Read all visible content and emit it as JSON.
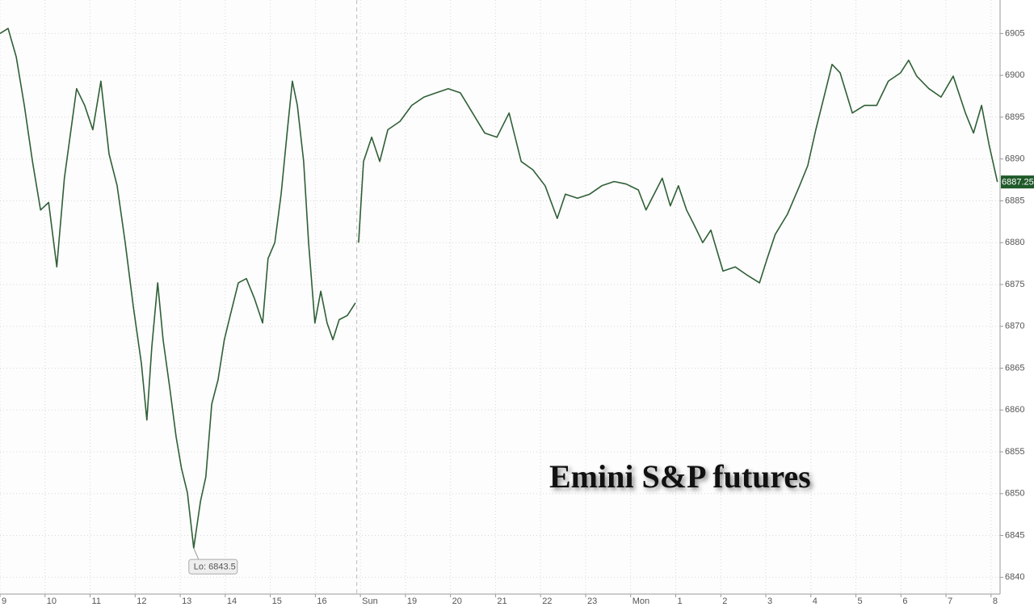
{
  "chart_data": {
    "type": "line",
    "title": "Emini S&P futures",
    "x": [
      0,
      0.18,
      0.36,
      0.54,
      0.72,
      0.9,
      1.08,
      1.26,
      1.43,
      1.7,
      1.88,
      2.06,
      2.24,
      2.42,
      2.6,
      2.78,
      2.96,
      3.14,
      3.26,
      3.37,
      3.5,
      3.62,
      3.77,
      3.91,
      4.03,
      4.16,
      4.3,
      4.45,
      4.57,
      4.7,
      4.84,
      4.98,
      5.11,
      5.29,
      5.47,
      5.65,
      5.83,
      5.95,
      6.1,
      6.24,
      6.38,
      6.49,
      6.6,
      6.74,
      6.85,
      6.99,
      7.12,
      7.26,
      7.39,
      7.53,
      7.71,
      7.89,
      7.92,
      7.96,
      8.07,
      8.25,
      8.43,
      8.61,
      8.88,
      9.14,
      9.41,
      9.68,
      9.95,
      10.22,
      10.49,
      10.76,
      11.03,
      11.3,
      11.57,
      11.83,
      12.1,
      12.37,
      12.55,
      12.82,
      13.09,
      13.36,
      13.63,
      13.9,
      14.17,
      14.34,
      14.52,
      14.7,
      14.88,
      15.06,
      15.24,
      15.42,
      15.6,
      15.78,
      16.05,
      16.32,
      16.59,
      16.86,
      17.03,
      17.21,
      17.48,
      17.75,
      17.93,
      18.11,
      18.29,
      18.47,
      18.65,
      18.92,
      19.19,
      19.46,
      19.72,
      19.99,
      20.17,
      20.35,
      20.62,
      20.89,
      21.16,
      21.43,
      21.61,
      21.79,
      21.96,
      22.14
    ],
    "series": [
      {
        "name": "Emini S&P futures",
        "color": "#2f5f36",
        "values": [
          6905,
          6905.6,
          6902.2,
          6896.4,
          6889.7,
          6883.9,
          6884.8,
          6877.1,
          6887.7,
          6898.4,
          6896.4,
          6893.5,
          6899.3,
          6890.6,
          6886.8,
          6880,
          6872.3,
          6865.5,
          6858.8,
          6867.5,
          6875.2,
          6868.4,
          6862.6,
          6856.8,
          6853,
          6850.1,
          6843.5,
          6849.1,
          6852,
          6860.7,
          6863.6,
          6868.4,
          6871.3,
          6875.2,
          6875.7,
          6873.3,
          6870.4,
          6878.1,
          6880,
          6885.8,
          6893.5,
          6899.3,
          6896.4,
          6889.7,
          6880,
          6870.4,
          6874.2,
          6870.4,
          6868.4,
          6870.8,
          6871.3,
          6872.8,
          null,
          6880,
          6889.7,
          6892.6,
          6889.7,
          6893.5,
          6894.5,
          6896.4,
          6897.4,
          6897.9,
          6898.4,
          6897.9,
          6895.5,
          6893.1,
          6892.6,
          6895.5,
          6889.7,
          6888.7,
          6886.8,
          6882.9,
          6885.8,
          6885.3,
          6885.8,
          6886.8,
          6887.3,
          6887,
          6886.3,
          6883.9,
          6885.8,
          6887.7,
          6884.4,
          6886.8,
          6883.9,
          6882,
          6880,
          6881.5,
          6876.6,
          6877.1,
          6876.1,
          6875.2,
          6878.1,
          6881,
          6883.4,
          6886.8,
          6889.2,
          6893.5,
          6897.4,
          6901.3,
          6900.3,
          6895.5,
          6896.4,
          6896.4,
          6899.3,
          6900.3,
          6901.8,
          6899.9,
          6898.4,
          6897.4,
          6899.9,
          6895.5,
          6893.1,
          6896.4,
          6891.6,
          6887.25
        ]
      }
    ],
    "xlim": [
      0,
      22.2
    ],
    "xticks": [
      {
        "value": 0,
        "label": "9"
      },
      {
        "value": 1,
        "label": "10"
      },
      {
        "value": 2,
        "label": "11"
      },
      {
        "value": 3,
        "label": "12"
      },
      {
        "value": 4,
        "label": "13"
      },
      {
        "value": 5,
        "label": "14"
      },
      {
        "value": 6,
        "label": "15"
      },
      {
        "value": 7,
        "label": "16"
      },
      {
        "value": 8,
        "label": "Sun"
      },
      {
        "value": 9,
        "label": "19"
      },
      {
        "value": 10,
        "label": "20"
      },
      {
        "value": 11,
        "label": "21"
      },
      {
        "value": 12,
        "label": "22"
      },
      {
        "value": 13,
        "label": "23"
      },
      {
        "value": 14,
        "label": "Mon"
      },
      {
        "value": 15,
        "label": "1"
      },
      {
        "value": 16,
        "label": "2"
      },
      {
        "value": 17,
        "label": "3"
      },
      {
        "value": 18,
        "label": "4"
      },
      {
        "value": 19,
        "label": "5"
      },
      {
        "value": 20,
        "label": "6"
      },
      {
        "value": 21,
        "label": "7"
      },
      {
        "value": 22,
        "label": "8"
      }
    ],
    "ylim": [
      6838,
      6909
    ],
    "yticks": [
      6840,
      6845,
      6850,
      6855,
      6860,
      6865,
      6870,
      6875,
      6880,
      6885,
      6890,
      6895,
      6900,
      6905
    ],
    "grid": true,
    "session_break": 7.92,
    "low_annotation": {
      "value": 6843.5,
      "label": "Lo: 6843.5"
    },
    "last_price": 6887.25
  }
}
